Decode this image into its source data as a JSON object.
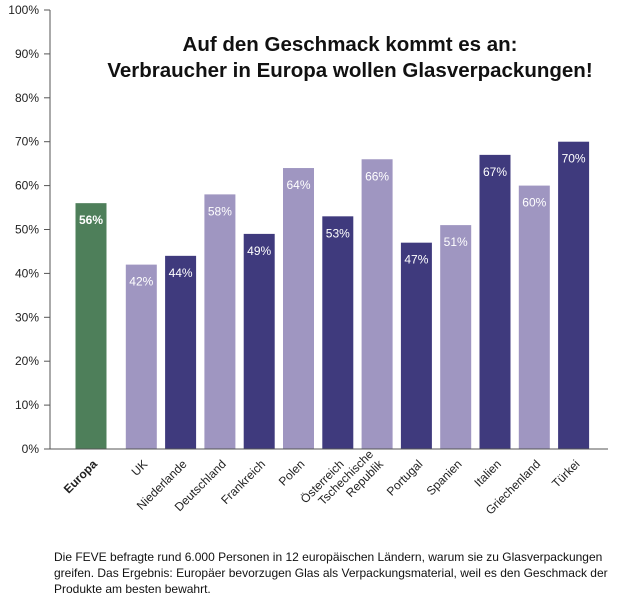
{
  "chart_data": {
    "type": "bar",
    "title_lines": [
      "Auf den Geschmack kommt es an:",
      "Verbraucher in Europa wollen Glasverpackungen!"
    ],
    "categories": [
      "Europa",
      "UK",
      "Niederlande",
      "Deutschland",
      "Frankreich",
      "Polen",
      "Österreich",
      "Tschechische Republik",
      "Portugal",
      "Spanien",
      "Italien",
      "Griechenland",
      "Türkei"
    ],
    "category_lines": [
      [
        "Europa"
      ],
      [
        "UK"
      ],
      [
        "Niederlande"
      ],
      [
        "Deutschland"
      ],
      [
        "Frankreich"
      ],
      [
        "Polen"
      ],
      [
        "Österreich"
      ],
      [
        "Tschechische",
        "Republik"
      ],
      [
        "Portugal"
      ],
      [
        "Spanien"
      ],
      [
        "Italien"
      ],
      [
        "Griechenland"
      ],
      [
        "Türkei"
      ]
    ],
    "values": [
      56,
      42,
      44,
      58,
      49,
      64,
      53,
      66,
      47,
      51,
      67,
      60,
      70
    ],
    "data_labels": [
      "56%",
      "42%",
      "44%",
      "58%",
      "49%",
      "64%",
      "53%",
      "66%",
      "47%",
      "51%",
      "67%",
      "60%",
      "70%"
    ],
    "bar_colors": [
      "#4e7f5a",
      "#9f96c1",
      "#3f3a7d",
      "#9f96c1",
      "#3f3a7d",
      "#9f96c1",
      "#3f3a7d",
      "#9f96c1",
      "#3f3a7d",
      "#9f96c1",
      "#3f3a7d",
      "#9f96c1",
      "#3f3a7d"
    ],
    "highlight_category": "Europa",
    "ylim": [
      0,
      100
    ],
    "y_ticks": [
      "0%",
      "10%",
      "20%",
      "30%",
      "40%",
      "50%",
      "60%",
      "70%",
      "80%",
      "90%",
      "100%"
    ],
    "xlabel": "",
    "ylabel": "",
    "grid": false,
    "colors": {
      "europa": "#4e7f5a",
      "light": "#9f96c1",
      "dark": "#3f3a7d",
      "axis": "#555555"
    }
  },
  "caption": "Die FEVE befragte rund 6.000 Personen in 12 europäischen Ländern, warum sie zu Glasverpackungen greifen. Das Ergebnis: Europäer bevorzugen Glas als Verpackungsmaterial, weil es den Geschmack der Produkte am besten bewahrt."
}
